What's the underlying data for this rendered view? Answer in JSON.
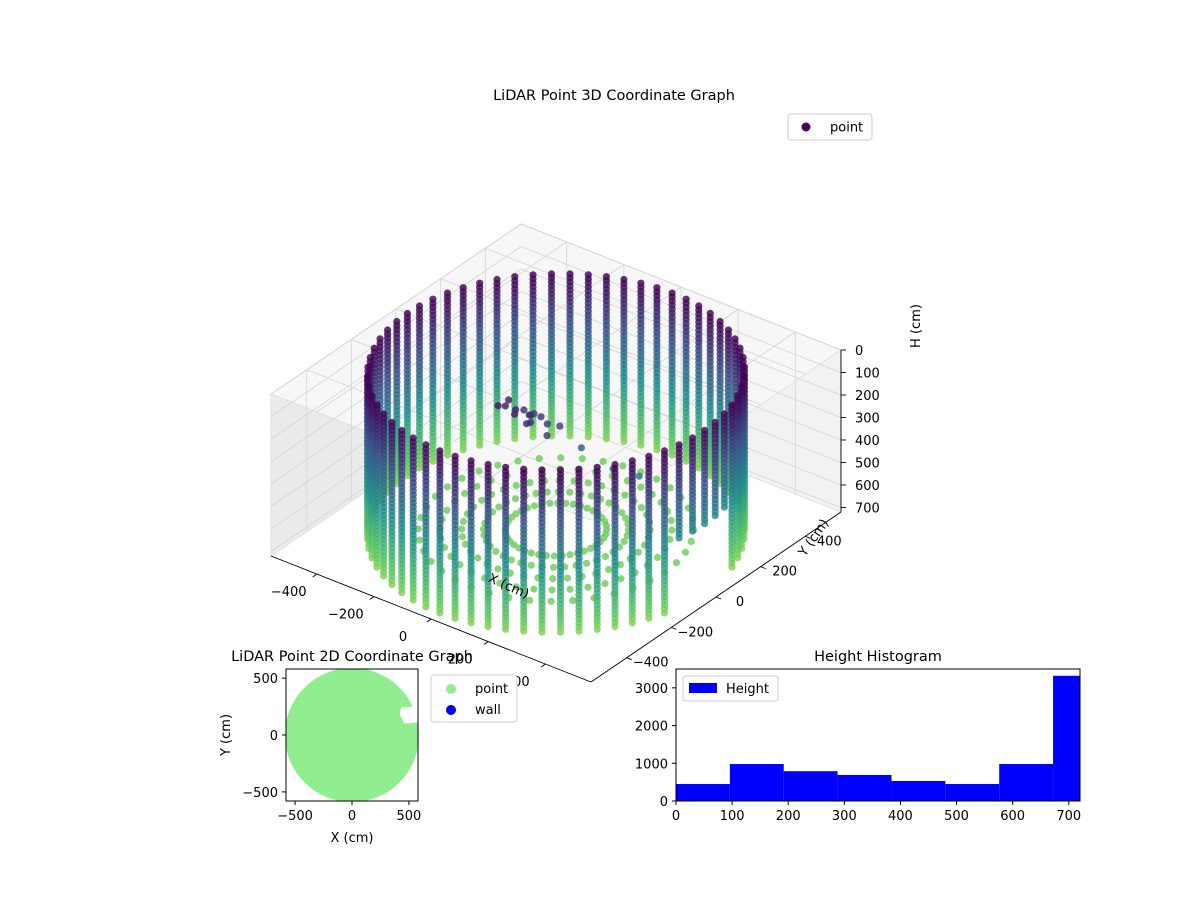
{
  "chart_data": [
    {
      "type": "scatter",
      "projection": "3d",
      "title": "LiDAR Point 3D Coordinate Graph",
      "xlabel": "X (cm)",
      "ylabel": "Y (cm)",
      "zlabel": "H (cm)",
      "legend": {
        "position": "top-right",
        "entries": [
          "point"
        ]
      },
      "colormap": "viridis",
      "z_axis_inverted": true,
      "xlim": [
        -560,
        560
      ],
      "ylim": [
        -560,
        560
      ],
      "zlim": [
        0,
        720
      ],
      "x_ticks": [
        "−400",
        "−200",
        "0",
        "200",
        "400"
      ],
      "y_ticks": [
        "−400",
        "−200",
        "0",
        "200",
        "400"
      ],
      "z_ticks": [
        "0",
        "100",
        "200",
        "300",
        "400",
        "500",
        "600",
        "700"
      ],
      "ring": {
        "radius_cm": 520,
        "opening_x_range": [
          380,
          560
        ],
        "opening_y_range": [
          -120,
          120
        ]
      },
      "grid": true
    },
    {
      "type": "scatter",
      "title": "LiDAR Point 2D Coordinate Graph",
      "xlabel": "X (cm)",
      "ylabel": "Y (cm)",
      "xlim": [
        -580,
        580
      ],
      "ylim": [
        -580,
        580
      ],
      "x_ticks": [
        -500,
        0,
        500
      ],
      "y_ticks": [
        -500,
        0,
        500
      ],
      "series": [
        {
          "name": "point",
          "color": "#90ee90",
          "region_radius_cm": 590
        },
        {
          "name": "wall",
          "color": "#0000ff"
        }
      ],
      "legend": {
        "position": "outside-right"
      },
      "grid": false
    },
    {
      "type": "bar",
      "subtype": "histogram",
      "title": "Height Histogram",
      "xlabel": "",
      "ylabel": "",
      "bin_edges": [
        0,
        96,
        192,
        288,
        384,
        480,
        576,
        672,
        720
      ],
      "values": [
        450,
        980,
        790,
        690,
        530,
        450,
        980,
        3320
      ],
      "series": [
        {
          "name": "Height",
          "color": "#0000ff"
        }
      ],
      "xlim": [
        0,
        720
      ],
      "ylim": [
        0,
        3500
      ],
      "x_ticks": [
        0,
        100,
        200,
        300,
        400,
        500,
        600,
        700
      ],
      "y_ticks": [
        0,
        1000,
        2000,
        3000
      ],
      "legend": {
        "position": "top-left"
      },
      "grid": false
    }
  ]
}
